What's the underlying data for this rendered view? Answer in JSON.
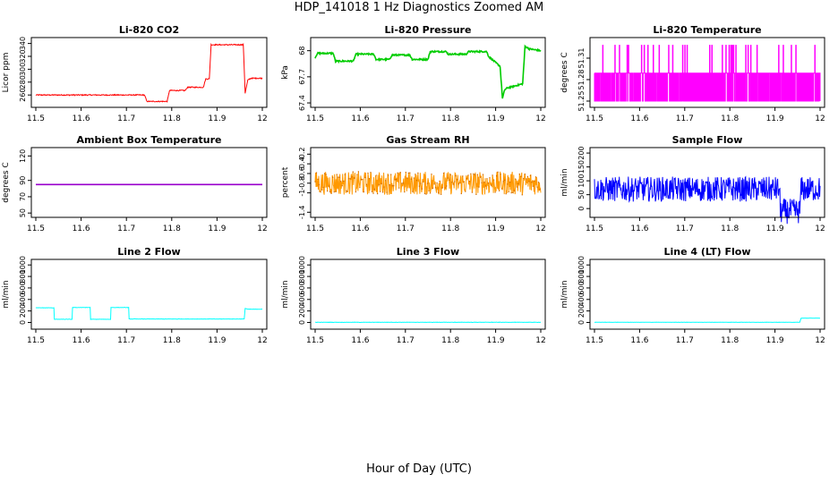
{
  "figure": {
    "title": "HDP_141018  1 Hz Diagnostics Zoomed AM",
    "xlabel": "Hour of Day (UTC)"
  },
  "chart_data": [
    {
      "type": "line",
      "title": "Li-820 CO2",
      "ylabel": "Licor ppm",
      "color": "#ff0000",
      "xlim": [
        11.5,
        12.0
      ],
      "ylim": [
        245,
        345
      ],
      "xticks": [
        11.5,
        11.6,
        11.7,
        11.8,
        11.9,
        12.0
      ],
      "yticks": [
        260,
        280,
        300,
        320,
        340
      ],
      "noise": 0.8,
      "series": [
        {
          "x": [
            11.5,
            11.74,
            11.745,
            11.79,
            11.795,
            11.83,
            11.835,
            11.87,
            11.875,
            11.883,
            11.887,
            11.958,
            11.962,
            11.968,
            11.975,
            12.0
          ],
          "y": [
            260,
            260,
            250,
            250,
            267,
            267,
            272,
            272,
            285,
            285,
            338,
            338,
            263,
            283,
            286,
            286
          ]
        }
      ]
    },
    {
      "type": "line",
      "title": "Li-820 Pressure",
      "ylabel": "kPa",
      "color": "#00cc00",
      "xlim": [
        11.5,
        12.0
      ],
      "ylim": [
        67.38,
        68.12
      ],
      "xticks": [
        11.5,
        11.6,
        11.7,
        11.8,
        11.9,
        12.0
      ],
      "yticks": [
        67.4,
        67.7,
        68.0
      ],
      "noise": 0.008,
      "series": [
        {
          "x": [
            11.5,
            11.505,
            11.54,
            11.545,
            11.585,
            11.59,
            11.63,
            11.635,
            11.665,
            11.67,
            11.71,
            11.715,
            11.75,
            11.755,
            11.79,
            11.795,
            11.835,
            11.84,
            11.88,
            11.885,
            11.91,
            11.915,
            11.92,
            11.925,
            11.96,
            11.965,
            11.975,
            12.0
          ],
          "y": [
            67.92,
            67.97,
            67.97,
            67.88,
            67.88,
            67.96,
            67.96,
            67.9,
            67.9,
            67.95,
            67.95,
            67.9,
            67.9,
            67.99,
            67.99,
            67.96,
            67.96,
            67.99,
            67.99,
            67.93,
            67.82,
            67.45,
            67.55,
            67.57,
            67.62,
            68.05,
            68.02,
            68.0
          ]
        }
      ]
    },
    {
      "type": "line",
      "title": "Li-820 Temperature",
      "ylabel": "degrees C",
      "color": "#ff00ff",
      "xlim": [
        11.5,
        12.0
      ],
      "ylim": [
        51.245,
        51.335
      ],
      "xticks": [
        11.5,
        11.6,
        11.7,
        11.8,
        11.9,
        12.0
      ],
      "yticks": [
        51.25,
        51.28,
        51.31
      ],
      "noise": 0,
      "levels": [
        51.25,
        51.289,
        51.328
      ],
      "level_probs": [
        0.35,
        0.57,
        0.08
      ],
      "series": [
        {
          "x": [
            11.5,
            12.0
          ],
          "y": [
            51.27,
            51.27
          ]
        }
      ]
    },
    {
      "type": "line",
      "title": "Ambient Box Temperature",
      "ylabel": "degrees C",
      "color": "#9900cc",
      "xlim": [
        11.5,
        12.0
      ],
      "ylim": [
        48,
        127
      ],
      "xticks": [
        11.5,
        11.6,
        11.7,
        11.8,
        11.9,
        12.0
      ],
      "yticks": [
        50,
        70,
        90,
        120
      ],
      "noise": 0,
      "series": [
        {
          "x": [
            11.5,
            12.0
          ],
          "y": [
            85,
            85
          ]
        }
      ]
    },
    {
      "type": "line",
      "title": "Gas Stream RH",
      "ylabel": "percent",
      "color": "#ff9900",
      "marker_color": "#cc6600",
      "xlim": [
        11.5,
        12.0
      ],
      "ylim": [
        -1.45,
        -0.12
      ],
      "xticks": [
        11.5,
        11.6,
        11.7,
        11.8,
        11.9,
        12.0
      ],
      "yticks": [
        -1.4,
        -1.0,
        -0.8,
        -0.6,
        -0.4,
        -0.2
      ],
      "noise": 0.24,
      "series": [
        {
          "x": [
            11.5,
            12.0
          ],
          "y": [
            -0.8,
            -0.8
          ]
        }
      ]
    },
    {
      "type": "line",
      "title": "Sample Flow",
      "ylabel": "ml/min",
      "color": "#0000ff",
      "xlim": [
        11.5,
        12.0
      ],
      "ylim": [
        -22,
        210
      ],
      "xticks": [
        11.5,
        11.6,
        11.7,
        11.8,
        11.9,
        12.0
      ],
      "yticks": [
        0,
        50,
        100,
        150,
        200
      ],
      "noise": 45,
      "series": [
        {
          "x": [
            11.5,
            11.91,
            11.912,
            11.955,
            11.958,
            12.0
          ],
          "y": [
            70,
            70,
            -10,
            -10,
            70,
            70
          ]
        }
      ]
    },
    {
      "type": "line",
      "title": "Line 2 Flow",
      "ylabel": "ml/min",
      "color": "#00ffff",
      "xlim": [
        11.5,
        12.0
      ],
      "ylim": [
        -70,
        1050
      ],
      "xticks": [
        11.5,
        11.6,
        11.7,
        11.8,
        11.9,
        12.0
      ],
      "yticks": [
        0,
        200,
        400,
        600,
        800,
        1000
      ],
      "noise": 3,
      "series": [
        {
          "x": [
            11.5,
            11.54,
            11.541,
            11.58,
            11.581,
            11.62,
            11.621,
            11.665,
            11.666,
            11.705,
            11.706,
            11.96,
            11.962,
            11.968,
            12.0
          ],
          "y": [
            255,
            255,
            55,
            55,
            260,
            260,
            55,
            55,
            260,
            260,
            60,
            60,
            245,
            230,
            230
          ]
        }
      ]
    },
    {
      "type": "line",
      "title": "Line 3 Flow",
      "ylabel": "ml/min",
      "color": "#00ffff",
      "xlim": [
        11.5,
        12.0
      ],
      "ylim": [
        -70,
        1050
      ],
      "xticks": [
        11.5,
        11.6,
        11.7,
        11.8,
        11.9,
        12.0
      ],
      "yticks": [
        0,
        200,
        400,
        600,
        800,
        1000
      ],
      "noise": 3,
      "series": [
        {
          "x": [
            11.5,
            12.0
          ],
          "y": [
            3,
            3
          ]
        }
      ]
    },
    {
      "type": "line",
      "title": "Line 4 (LT) Flow",
      "ylabel": "ml/min",
      "color": "#00ffff",
      "xlim": [
        11.5,
        12.0
      ],
      "ylim": [
        -70,
        1050
      ],
      "xticks": [
        11.5,
        11.6,
        11.7,
        11.8,
        11.9,
        12.0
      ],
      "yticks": [
        0,
        200,
        400,
        600,
        800,
        1000
      ],
      "noise": 2,
      "series": [
        {
          "x": [
            11.5,
            11.955,
            11.958,
            12.0
          ],
          "y": [
            3,
            3,
            75,
            75
          ]
        }
      ]
    }
  ]
}
